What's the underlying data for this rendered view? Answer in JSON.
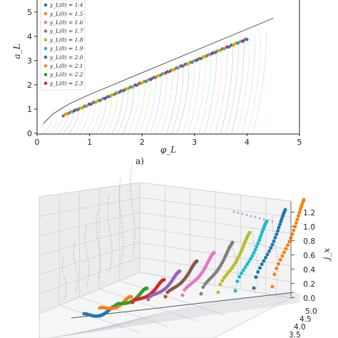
{
  "chart_data": [
    {
      "type": "line",
      "panel_label": "a)",
      "xlabel": "φ_L",
      "ylabel": "a_L",
      "xlim": [
        0,
        5
      ],
      "ylim": [
        0,
        5.5
      ],
      "xticks": [
        "0",
        "1",
        "2",
        "3",
        "4",
        "5"
      ],
      "yticks": [
        "0",
        "1",
        "2",
        "3",
        "4",
        "5"
      ],
      "grid": false,
      "legend_position": "top-left",
      "legend": [
        {
          "label": "y_L(0) = 1.4",
          "color": "#1f77b4"
        },
        {
          "label": "y_L(0) = 1.5",
          "color": "#ff7f0e"
        },
        {
          "label": "y_L(0) = 1.6",
          "color": "#e377c2"
        },
        {
          "label": "y_L(0) = 1.7",
          "color": "#7f7f7f"
        },
        {
          "label": "y_L(0) = 1.8",
          "color": "#bcbd22"
        },
        {
          "label": "y_L(0) = 1.9",
          "color": "#17becf"
        },
        {
          "label": "y_L(0) = 2.0",
          "color": "#1f77b4"
        },
        {
          "label": "y_L(0) = 2.1",
          "color": "#ff7f0e"
        },
        {
          "label": "y_L(0) = 2.2",
          "color": "#2ca02c"
        },
        {
          "label": "y_L(0) = 2.3",
          "color": "#d62728"
        }
      ],
      "envelope": {
        "x": [
          0.12,
          0.3,
          0.6,
          1.0,
          1.5,
          2.0,
          2.5,
          3.0,
          3.5,
          4.0,
          4.5
        ],
        "y": [
          0.4,
          0.8,
          1.2,
          1.6,
          2.05,
          2.5,
          2.95,
          3.4,
          3.85,
          4.3,
          4.75
        ]
      },
      "point_band_x": [
        0.5,
        4.0
      ],
      "faint_curve_count": 40
    },
    {
      "type": "scatter",
      "projection": "3d",
      "zlabel": "j_x",
      "zticks": [
        "0.0",
        "0.2",
        "0.4",
        "0.6",
        "0.8",
        "1.0",
        "1.2"
      ],
      "depth_ticks": [
        "3.5",
        "4.0",
        "4.5",
        "5.0"
      ],
      "series_colors": [
        "#1f77b4",
        "#ff7f0e",
        "#2ca02c",
        "#d62728",
        "#9467bd",
        "#8c564b",
        "#e377c2",
        "#7f7f7f",
        "#bcbd22",
        "#17becf"
      ]
    }
  ]
}
